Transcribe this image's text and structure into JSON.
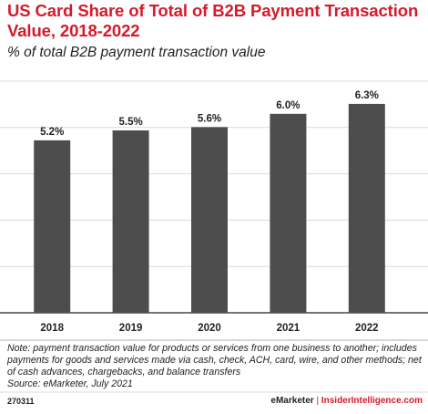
{
  "title": "US Card Share of Total of B2B Payment Transaction Value, 2018-2022",
  "subtitle": "% of total B2B payment transaction value",
  "note": "Note: payment transaction value for products or services from one business to another; includes payments for goods and services made via cash, check, ACH, card, wire, and other methods; net of cash advances, chargebacks, and balance transfers",
  "source": "Source: eMarketer, July 2021",
  "chart_id": "270311",
  "footer": {
    "brand": "eMarketer",
    "separator": "|",
    "site": "InsiderIntelligence.com"
  },
  "colors": {
    "bar": "#4d4d4d",
    "title": "#d7192a",
    "gridline": "#d9d9d9",
    "axis": "#222222"
  },
  "chart_data": {
    "type": "bar",
    "title": "US Card Share of Total of B2B Payment Transaction Value, 2018-2022",
    "subtitle": "% of total B2B payment transaction value",
    "categories": [
      "2018",
      "2019",
      "2020",
      "2021",
      "2022"
    ],
    "values": [
      5.2,
      5.5,
      5.6,
      6.0,
      6.3
    ],
    "value_labels": [
      "5.2%",
      "5.5%",
      "5.6%",
      "6.0%",
      "6.3%"
    ],
    "xlabel": "",
    "ylabel": "",
    "ylim": [
      0,
      6.6
    ],
    "grid": true
  }
}
